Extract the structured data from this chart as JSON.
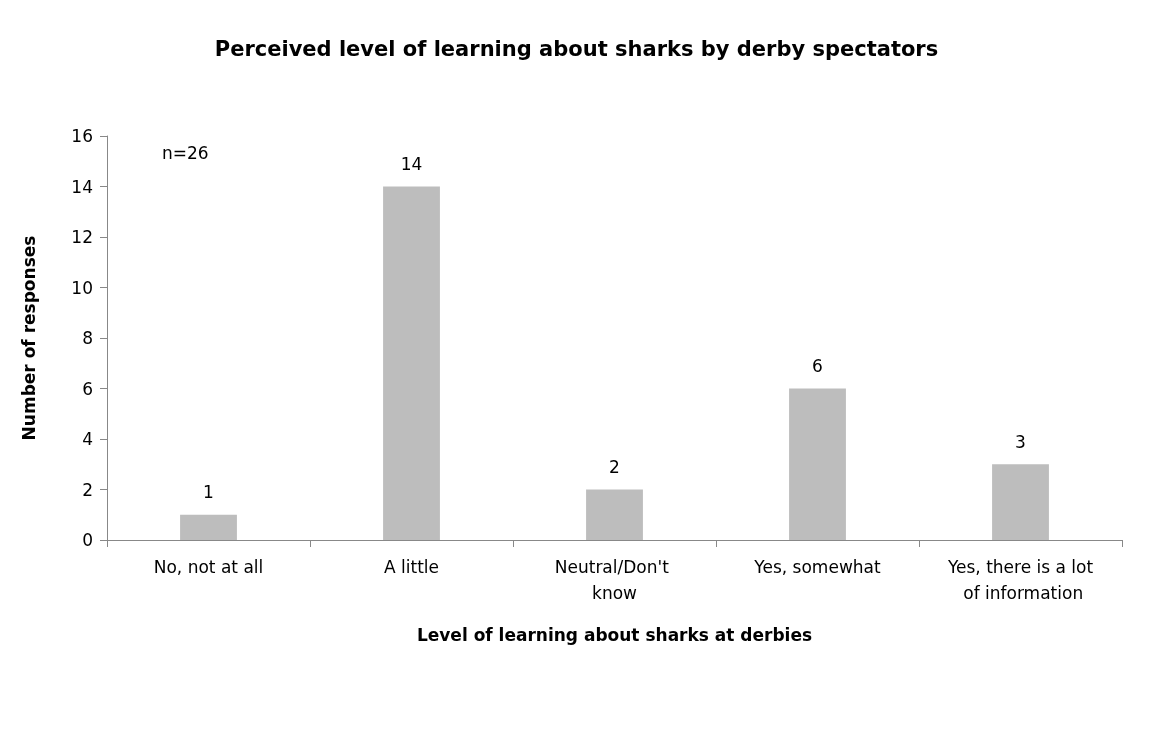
{
  "chart_data": {
    "type": "bar",
    "title": "Perceived level of learning about sharks by derby spectators",
    "xlabel": "Level of learning about sharks at derbies",
    "ylabel": "Number of responses",
    "categories": [
      "No, not at all",
      "A little",
      "Neutral/Don't know",
      "Yes, somewhat",
      "Yes, there is a lot of information"
    ],
    "values": [
      1,
      14,
      2,
      6,
      3
    ],
    "color": "#bdbdbd",
    "ylim": [
      0,
      16
    ],
    "yticks": [
      0,
      2,
      4,
      6,
      8,
      10,
      12,
      14,
      16
    ],
    "grid": false,
    "data_labels": true,
    "annotations": [
      "n=26"
    ]
  }
}
